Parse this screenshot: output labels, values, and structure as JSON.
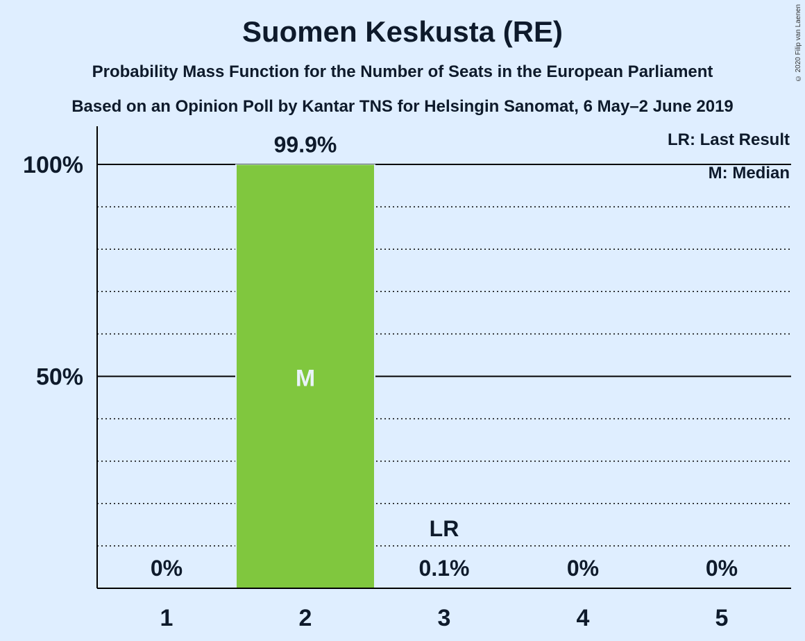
{
  "title": "Suomen Keskusta (RE)",
  "subtitle1": "Probability Mass Function for the Number of Seats in the European Parliament",
  "subtitle2": "Based on an Opinion Poll by Kantar TNS for Helsingin Sanomat, 6 May–2 June 2019",
  "copyright": "© 2020 Filip van Laenen",
  "legend": {
    "last_result": "LR: Last Result",
    "median": "M: Median"
  },
  "colors": {
    "bar": "#80c73e",
    "background": "#dfeeff",
    "text": "#0e1a2b"
  },
  "chart_data": {
    "type": "bar",
    "categories": [
      "1",
      "2",
      "3",
      "4",
      "5"
    ],
    "values": [
      0,
      99.9,
      0.1,
      0,
      0
    ],
    "value_labels": [
      "0%",
      "99.9%",
      "0.1%",
      "0%",
      "0%"
    ],
    "ylim": [
      0,
      100
    ],
    "y_ticks": [
      {
        "value": 50,
        "label": "50%"
      },
      {
        "value": 100,
        "label": "100%"
      }
    ],
    "minor_gridlines": [
      10,
      20,
      30,
      40,
      60,
      70,
      80,
      90
    ],
    "median_category": "2",
    "median_marker": "M",
    "last_result_category": "3",
    "last_result_marker": "LR",
    "legend_position": "top-right",
    "grid": true
  }
}
